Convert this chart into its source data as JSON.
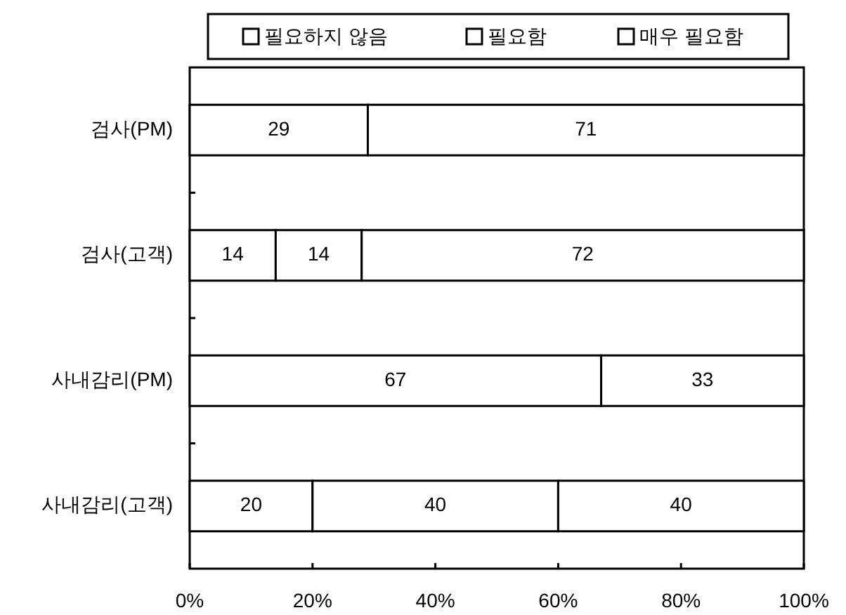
{
  "chart_data": {
    "type": "bar",
    "orientation": "horizontal",
    "stacked": true,
    "categories": [
      "검사(PM)",
      "검사(고객)",
      "사내감리(PM)",
      "사내감리(고객)"
    ],
    "series": [
      {
        "name": "필요하지 않음",
        "color": "#ffffff",
        "values": [
          0,
          14,
          0,
          20
        ],
        "value_labels": [
          null,
          "14",
          null,
          "20"
        ]
      },
      {
        "name": "필요함",
        "color": "#ffffff",
        "values": [
          29,
          14,
          67,
          40
        ],
        "value_labels": [
          "29",
          "14",
          "67",
          "40"
        ]
      },
      {
        "name": "매우 필요함",
        "color": "#ffffff",
        "values": [
          71,
          72,
          33,
          40
        ],
        "value_labels": [
          "71",
          "72",
          "33",
          "40"
        ]
      }
    ],
    "xlim": [
      0,
      100
    ],
    "xticks": [
      {
        "value": 0,
        "label": "0%"
      },
      {
        "value": 20,
        "label": "20%"
      },
      {
        "value": 40,
        "label": "40%"
      },
      {
        "value": 60,
        "label": "60%"
      },
      {
        "value": 80,
        "label": "80%"
      },
      {
        "value": 100,
        "label": "100%"
      }
    ],
    "legend": "top",
    "grid": false
  }
}
